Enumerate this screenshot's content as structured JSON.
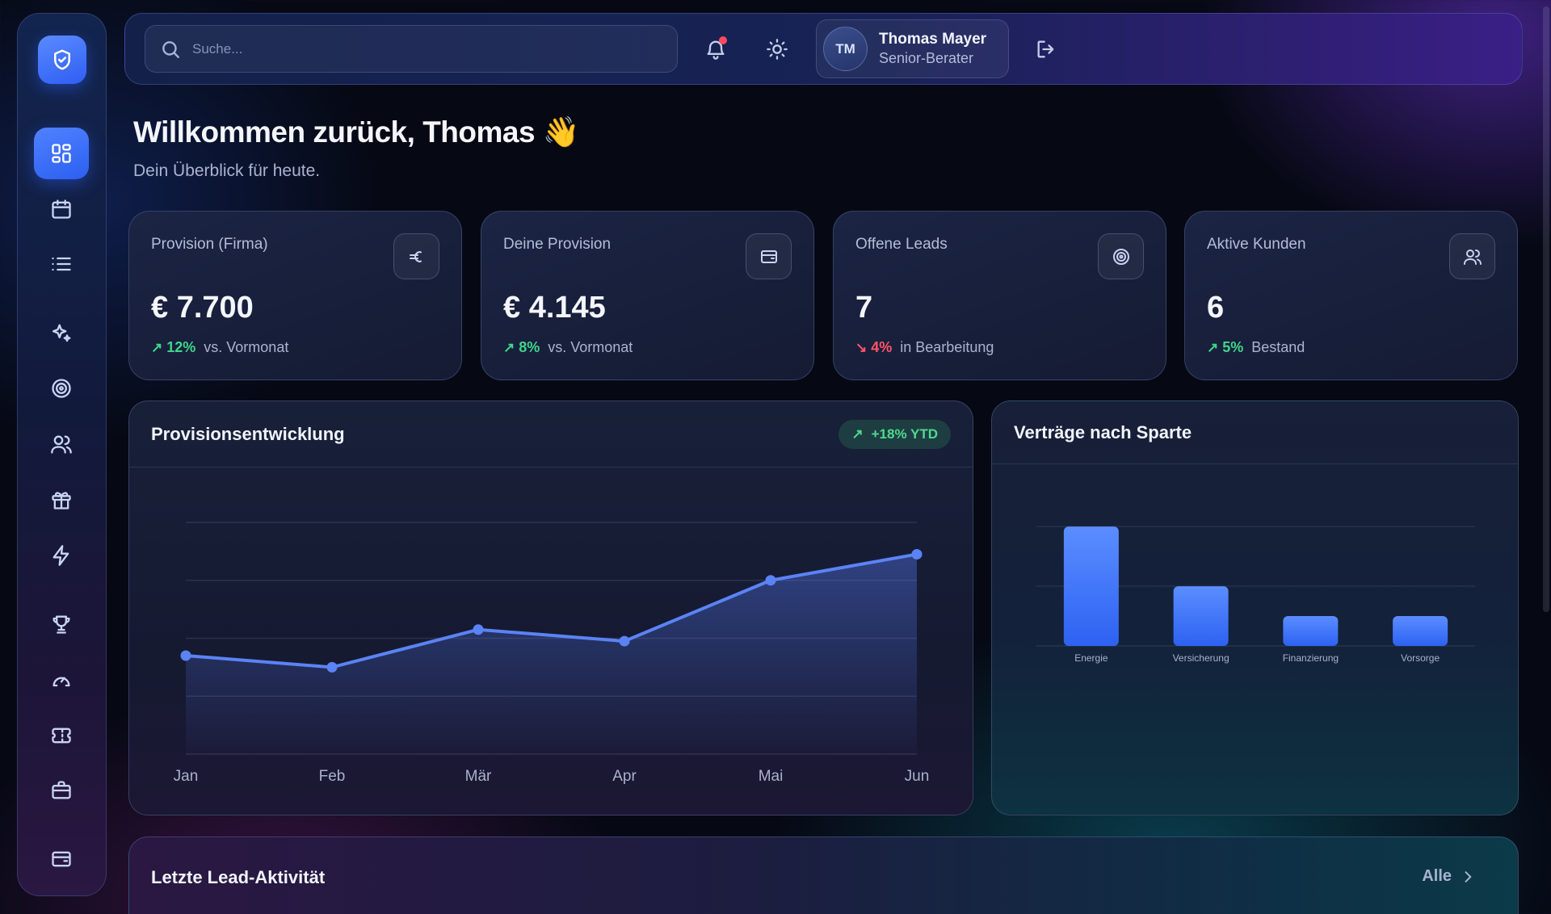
{
  "search": {
    "placeholder": "Suche..."
  },
  "user": {
    "initials": "TM",
    "name": "Thomas Mayer",
    "role": "Senior-Berater"
  },
  "header": {
    "title": "Willkommen zurück, Thomas 👋",
    "subtitle": "Dein Überblick für heute."
  },
  "stats": [
    {
      "label": "Provision (Firma)",
      "value": "€ 7.700",
      "trend": "12%",
      "direction": "up",
      "note": "vs. Vormonat",
      "icon": "euro-icon"
    },
    {
      "label": "Deine Provision",
      "value": "€ 4.145",
      "trend": "8%",
      "direction": "up",
      "note": "vs. Vormonat",
      "icon": "wallet-icon"
    },
    {
      "label": "Offene Leads",
      "value": "7",
      "trend": "4%",
      "direction": "down",
      "note": "in Bearbeitung",
      "icon": "target-icon"
    },
    {
      "label": "Aktive Kunden",
      "value": "6",
      "trend": "5%",
      "direction": "up",
      "note": "Bestand",
      "icon": "users-icon"
    }
  ],
  "line_panel": {
    "title": "Provisionsentwicklung",
    "badge": "+18% YTD"
  },
  "bar_panel": {
    "title": "Verträge nach Sparte"
  },
  "activity": {
    "title": "Letzte Lead-Aktivität",
    "link": "Alle"
  },
  "colors": {
    "accent": "#4f82ff",
    "up": "#3fd68a",
    "down": "#ff5466"
  },
  "chart_data": [
    {
      "type": "area",
      "title": "Provisionsentwicklung",
      "categories": [
        "Jan",
        "Feb",
        "Mär",
        "Apr",
        "Mai",
        "Jun"
      ],
      "values": [
        3.4,
        3.0,
        4.3,
        3.9,
        6.0,
        6.9
      ],
      "ylim": [
        0,
        8
      ],
      "grid": true
    },
    {
      "type": "bar",
      "title": "Verträge nach Sparte",
      "categories": [
        "Energie",
        "Versicherung",
        "Finanzierung",
        "Vorsorge"
      ],
      "values": [
        4,
        2,
        1,
        1
      ],
      "ylim": [
        0,
        4.6
      ],
      "grid": true
    }
  ]
}
